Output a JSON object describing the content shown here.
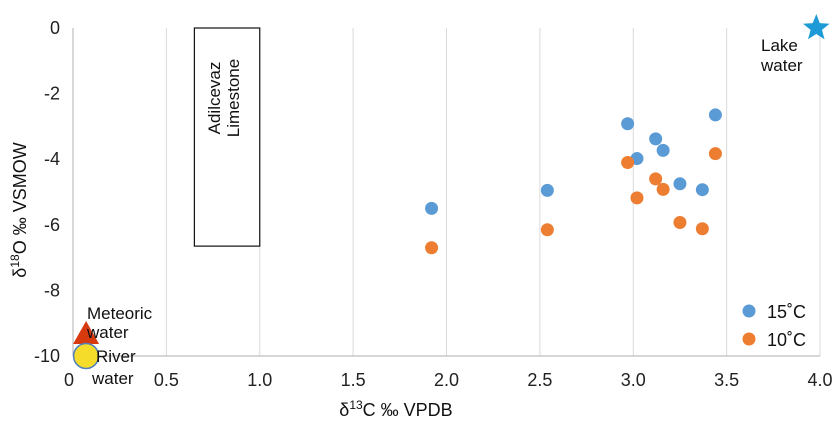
{
  "chart_data": {
    "type": "scatter",
    "xlabel": "δ13C ‰ VPDB",
    "ylabel": "δ18O ‰ VSMOW",
    "xlim": [
      0,
      4.0
    ],
    "ylim": [
      -10,
      0
    ],
    "x_ticks": [
      "0",
      "0.5",
      "1.0",
      "1.5",
      "2.0",
      "2.5",
      "3.0",
      "3.5",
      "4.0"
    ],
    "y_ticks": [
      "0",
      "-2",
      "-4",
      "-6",
      "-8",
      "-10"
    ],
    "grid": "vertical",
    "legend": "bottom-right",
    "series": [
      {
        "name": "15˚C",
        "color": "#5B9BD5",
        "points": [
          {
            "x": 1.92,
            "y": -5.5
          },
          {
            "x": 2.54,
            "y": -4.95
          },
          {
            "x": 2.97,
            "y": -2.92
          },
          {
            "x": 3.02,
            "y": -3.98
          },
          {
            "x": 3.12,
            "y": -3.38
          },
          {
            "x": 3.16,
            "y": -3.73
          },
          {
            "x": 3.25,
            "y": -4.75
          },
          {
            "x": 3.37,
            "y": -4.93
          },
          {
            "x": 3.44,
            "y": -2.65
          }
        ]
      },
      {
        "name": "10˚C",
        "color": "#ED7D31",
        "points": [
          {
            "x": 1.92,
            "y": -6.7
          },
          {
            "x": 2.54,
            "y": -6.15
          },
          {
            "x": 2.97,
            "y": -4.1
          },
          {
            "x": 3.02,
            "y": -5.18
          },
          {
            "x": 3.12,
            "y": -4.6
          },
          {
            "x": 3.16,
            "y": -4.92
          },
          {
            "x": 3.25,
            "y": -5.93
          },
          {
            "x": 3.37,
            "y": -6.12
          },
          {
            "x": 3.44,
            "y": -3.83
          }
        ]
      }
    ],
    "annotations": {
      "box": {
        "label_line1": "Adilcevaz",
        "label_line2": "Limestone",
        "x_range": [
          0.65,
          1.0
        ],
        "y_range": [
          -6.65,
          0
        ]
      },
      "lake": {
        "label_line1": "Lake",
        "label_line2": "water",
        "x": 3.98,
        "y": 0,
        "color": "#1E9BD7",
        "shape": "star-icon"
      },
      "meteoric": {
        "label_line1": "Meteoric",
        "label_line2": "water",
        "x": 0.07,
        "y": -9.3,
        "color": "#D83A0F",
        "shape": "triangle-icon"
      },
      "river": {
        "label_line1": "River",
        "label_line2": "water",
        "x": 0.07,
        "y": -10,
        "color": "#F5DC2A",
        "edge": "#4F7FBF",
        "shape": "circle-icon"
      }
    }
  }
}
